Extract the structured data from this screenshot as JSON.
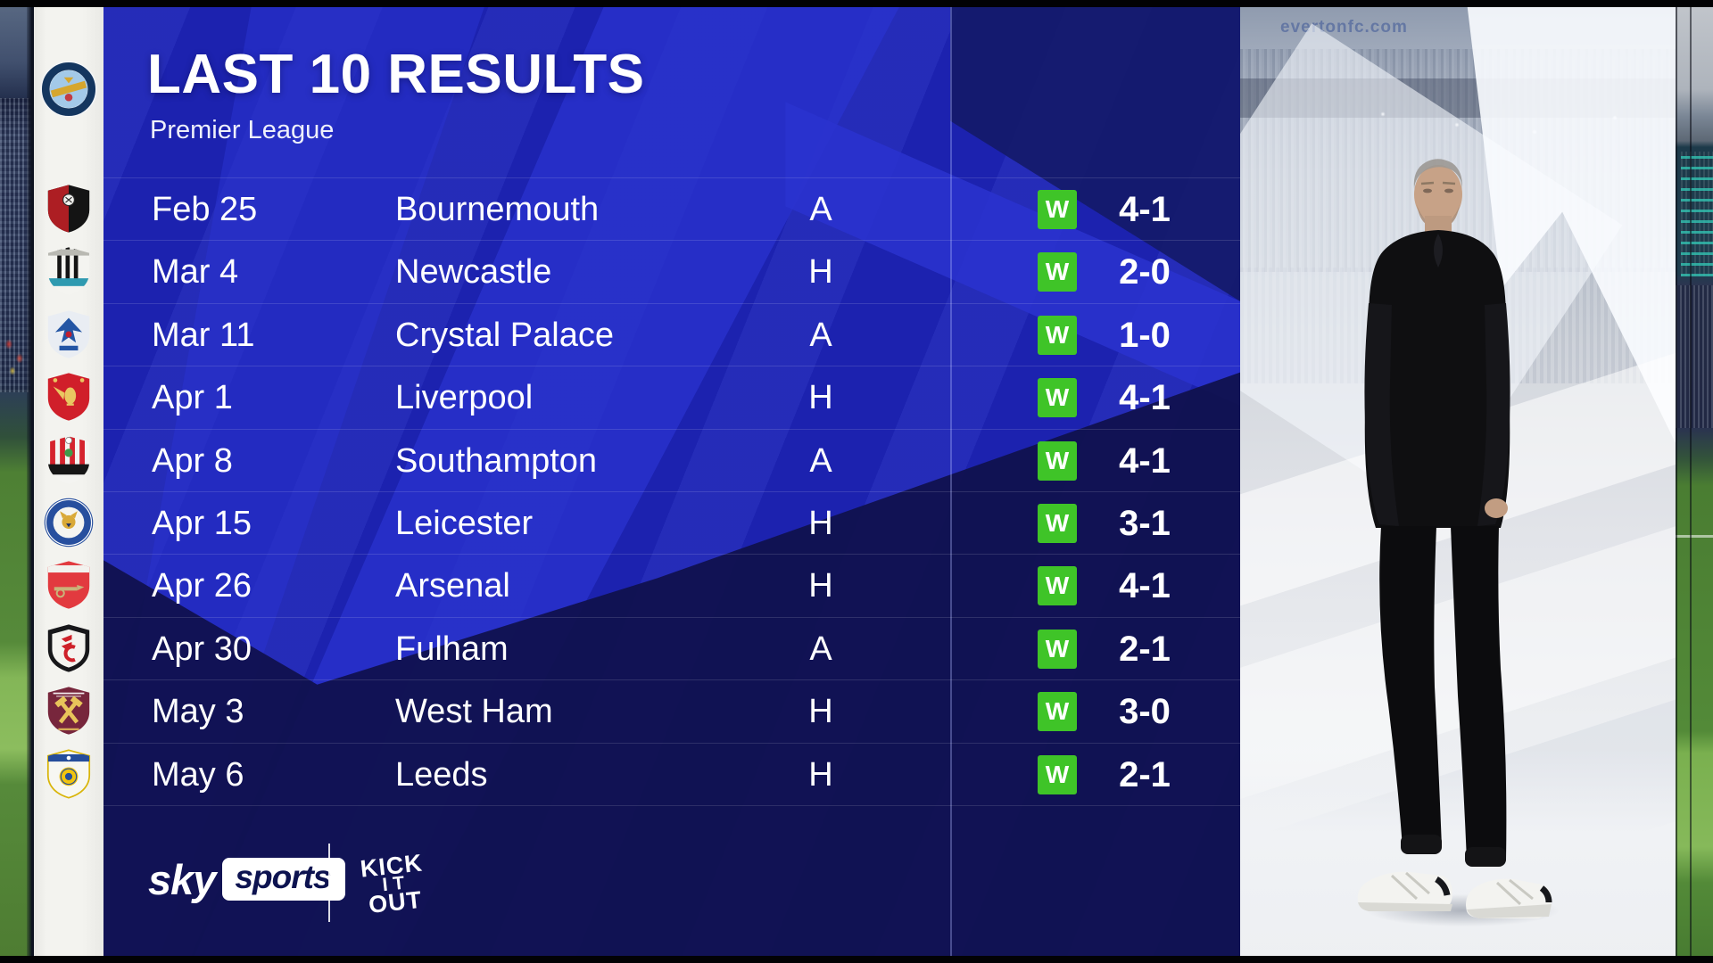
{
  "header": {
    "title": "LAST 10 RESULTS",
    "subtitle": "Premier League"
  },
  "team": {
    "name_on_crest": "MANCHESTER CITY",
    "crest": "man-city"
  },
  "results": [
    {
      "date": "Feb 25",
      "opponent": "Bournemouth",
      "venue": "A",
      "result": "W",
      "score": "4-1",
      "crest": "bournemouth"
    },
    {
      "date": "Mar 4",
      "opponent": "Newcastle",
      "venue": "H",
      "result": "W",
      "score": "2-0",
      "crest": "newcastle"
    },
    {
      "date": "Mar 11",
      "opponent": "Crystal Palace",
      "venue": "A",
      "result": "W",
      "score": "1-0",
      "crest": "crystal-palace"
    },
    {
      "date": "Apr 1",
      "opponent": "Liverpool",
      "venue": "H",
      "result": "W",
      "score": "4-1",
      "crest": "liverpool"
    },
    {
      "date": "Apr 8",
      "opponent": "Southampton",
      "venue": "A",
      "result": "W",
      "score": "4-1",
      "crest": "southampton"
    },
    {
      "date": "Apr 15",
      "opponent": "Leicester",
      "venue": "H",
      "result": "W",
      "score": "3-1",
      "crest": "leicester"
    },
    {
      "date": "Apr 26",
      "opponent": "Arsenal",
      "venue": "H",
      "result": "W",
      "score": "4-1",
      "crest": "arsenal"
    },
    {
      "date": "Apr 30",
      "opponent": "Fulham",
      "venue": "A",
      "result": "W",
      "score": "2-1",
      "crest": "fulham"
    },
    {
      "date": "May 3",
      "opponent": "West Ham",
      "venue": "H",
      "result": "W",
      "score": "3-0",
      "crest": "west-ham"
    },
    {
      "date": "May 6",
      "opponent": "Leeds",
      "venue": "H",
      "result": "W",
      "score": "2-1",
      "crest": "leeds"
    }
  ],
  "chart_data": {
    "type": "table",
    "title": "LAST 10 RESULTS",
    "subtitle": "Premier League",
    "columns": [
      "date",
      "opponent",
      "venue",
      "result",
      "score"
    ],
    "rows": [
      [
        "Feb 25",
        "Bournemouth",
        "A",
        "W",
        "4-1"
      ],
      [
        "Mar 4",
        "Newcastle",
        "H",
        "W",
        "2-0"
      ],
      [
        "Mar 11",
        "Crystal Palace",
        "A",
        "W",
        "1-0"
      ],
      [
        "Apr 1",
        "Liverpool",
        "H",
        "W",
        "4-1"
      ],
      [
        "Apr 8",
        "Southampton",
        "A",
        "W",
        "4-1"
      ],
      [
        "Apr 15",
        "Leicester",
        "H",
        "W",
        "3-1"
      ],
      [
        "Apr 26",
        "Arsenal",
        "H",
        "W",
        "4-1"
      ],
      [
        "Apr 30",
        "Fulham",
        "A",
        "W",
        "2-1"
      ],
      [
        "May 3",
        "West Ham",
        "H",
        "W",
        "3-0"
      ],
      [
        "May 6",
        "Leeds",
        "H",
        "W",
        "2-1"
      ]
    ]
  },
  "footer": {
    "sky": {
      "word1": "sky",
      "word2": "sports"
    },
    "kick_it_out": {
      "line1": "KICK",
      "line2": "IT",
      "line3": "OUT"
    }
  },
  "backdrop": {
    "ad_text": "evertonfc.com"
  },
  "colors": {
    "win_badge": "#3fc428",
    "panel_base": "#1d24b6",
    "panel_light": "#2a33cf",
    "panel_dark": "#10114e",
    "panel_dark2": "#131a69",
    "sidebar_bg": "#f3f3ef"
  },
  "crests": {
    "man-city": {
      "colors": [
        "#f2f4f6",
        "#14365f",
        "#a3c9e8",
        "#d6a62e",
        "#c23b43"
      ]
    },
    "bournemouth": {
      "colors": [
        "#ad1e23",
        "#141414",
        "#f1f1ee"
      ]
    },
    "newcastle": {
      "colors": [
        "#f4f4f0",
        "#141414",
        "#2e9ab0",
        "#b9b9b2"
      ]
    },
    "crystal-palace": {
      "colors": [
        "#2456a4",
        "#c01f2f",
        "#e9edf3"
      ]
    },
    "liverpool": {
      "colors": [
        "#d01f2a",
        "#e9c661"
      ]
    },
    "southampton": {
      "colors": [
        "#d5232d",
        "#161616",
        "#3f9b4a",
        "#f4f4f1"
      ]
    },
    "leicester": {
      "colors": [
        "#274f9e",
        "#1c2f66",
        "#d9a937",
        "#f4f4f0"
      ]
    },
    "arsenal": {
      "colors": [
        "#e23a3f",
        "#f2f2ee",
        "#c9b47a"
      ]
    },
    "fulham": {
      "colors": [
        "#17171a",
        "#ce2029",
        "#f4f3ef"
      ]
    },
    "west-ham": {
      "colors": [
        "#77263c",
        "#e8c45a",
        "#ffffff"
      ]
    },
    "leeds": {
      "colors": [
        "#254d9b",
        "#f1c40f",
        "#d9b50a",
        "#f7f7f2"
      ]
    }
  }
}
